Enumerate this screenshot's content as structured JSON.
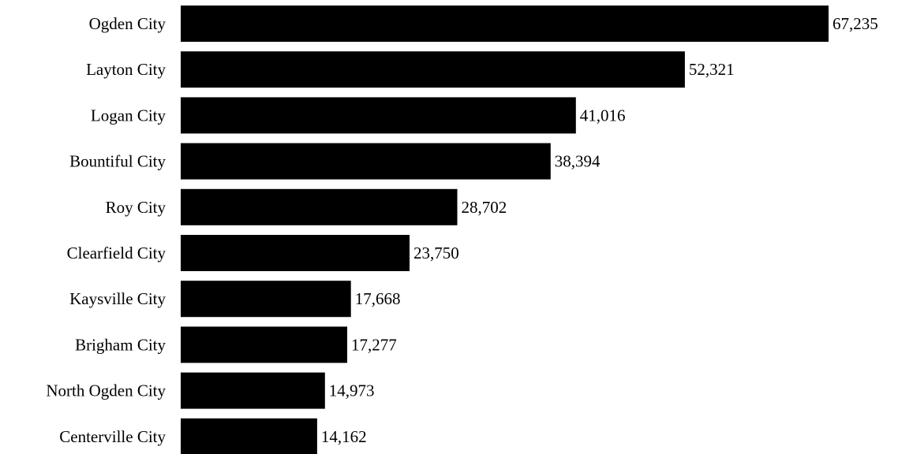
{
  "chart_data": {
    "type": "bar",
    "orientation": "horizontal",
    "title": "",
    "xlabel": "",
    "ylabel": "",
    "categories": [
      "Ogden City",
      "Layton City",
      "Logan City",
      "Bountiful City",
      "Roy City",
      "Clearfield City",
      "Kaysville City",
      "Brigham City",
      "North Ogden City",
      "Centerville City"
    ],
    "values": [
      67235,
      52321,
      41016,
      38394,
      28702,
      23750,
      17668,
      17277,
      14973,
      14162
    ],
    "value_labels": [
      "67,235",
      "52,321",
      "41,016",
      "38,394",
      "28,702",
      "23,750",
      "17,668",
      "17,277",
      "14,973",
      "14,162"
    ],
    "xlim": [
      0,
      67235
    ],
    "grid": false,
    "legend": "none",
    "bar_color": "#000000"
  }
}
